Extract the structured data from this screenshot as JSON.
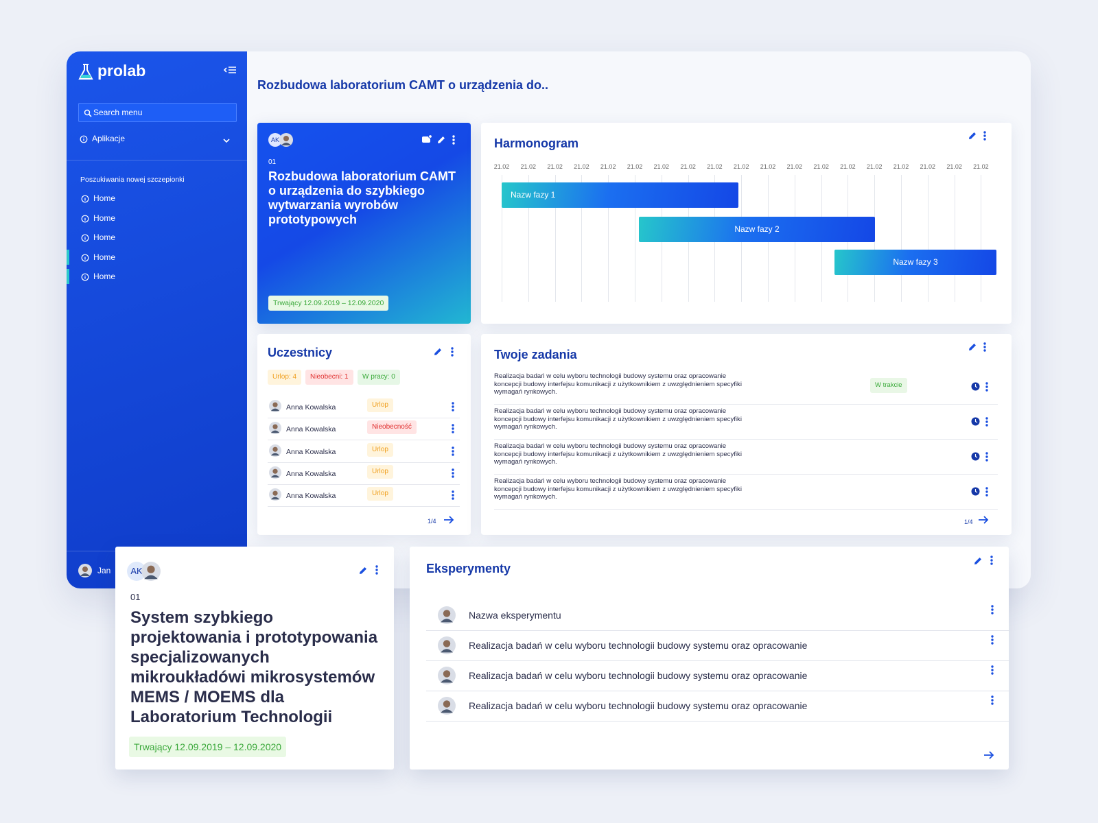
{
  "sidebar": {
    "logo": "prolab",
    "search": "Search menu",
    "apps": "Aplikacje",
    "section": "Poszukiwania nowej szczepionki",
    "items": [
      "Home",
      "Home",
      "Home",
      "Home",
      "Home"
    ],
    "user": "Jan"
  },
  "page_title": "Rozbudowa laboratorium CAMT o urządzenia do..",
  "project_card": {
    "avatar": "AK",
    "number": "01",
    "title": "Rozbudowa laboratorium CAMT o urządzenia do szybkiego wytwarzania wyrobów prototypowych",
    "status": "Trwający 12.09.2019 – 12.09.2020"
  },
  "schedule": {
    "title": "Harmonogram",
    "dates": [
      "21.02",
      "21.02",
      "21.02",
      "21.02",
      "21.02",
      "21.02",
      "21.02",
      "21.02",
      "21.02",
      "21.02",
      "21.02",
      "21.02",
      "21.02",
      "21.02",
      "21.02",
      "21.02",
      "21.02",
      "21.02",
      "21.02"
    ],
    "phases": [
      "Nazw fazy 1",
      "Nazw fazy 2",
      "Nazw fazy 3"
    ]
  },
  "participants": {
    "title": "Uczestnicy",
    "badges": [
      "Urlop: 4",
      "Nieobecni: 1",
      "W pracy: 0"
    ],
    "rows": [
      {
        "name": "Anna Kowalska",
        "status": "Urlop"
      },
      {
        "name": "Anna Kowalska",
        "status": "Nieobecność"
      },
      {
        "name": "Anna Kowalska",
        "status": "Urlop"
      },
      {
        "name": "Anna Kowalska",
        "status": "Urlop"
      },
      {
        "name": "Anna Kowalska",
        "status": "Urlop"
      }
    ],
    "pager": "1/4"
  },
  "tasks": {
    "title": "Twoje zadania",
    "rows": [
      {
        "text": "Realizacja badań w celu wyboru technologii budowy systemu oraz opracowanie koncepcji budowy interfejsu komunikacji z użytkownikiem z uwzględnieniem specyfiki wymagań rynkowych.",
        "status": "W trakcie"
      },
      {
        "text": "Realizacja badań w celu wyboru technologii budowy systemu oraz opracowanie koncepcji budowy interfejsu komunikacji z użytkownikiem z uwzględnieniem specyfiki wymagań rynkowych."
      },
      {
        "text": "Realizacja badań w celu wyboru technologii budowy systemu oraz opracowanie koncepcji budowy interfejsu komunikacji z użytkownikiem z uwzględnieniem specyfiki wymagań rynkowych."
      },
      {
        "text": "Realizacja badań w celu wyboru technologii budowy systemu oraz opracowanie koncepcji budowy interfejsu komunikacji z użytkownikiem z uwzględnieniem specyfiki wymagań rynkowych."
      }
    ],
    "pager": "1/4"
  },
  "zoom_card": {
    "avatar": "AK",
    "number": "01",
    "title": "System szybkiego projektowania i prototypowania specjalizowanych mikroukładówi mikrosystemów MEMS / MOEMS dla Laboratorium Technologii",
    "status": "Trwający 12.09.2019 – 12.09.2020"
  },
  "experiments": {
    "title": "Eksperymenty",
    "rows": [
      "Nazwa eksperymentu",
      "Realizacja badań w celu wyboru technologii budowy systemu oraz opracowanie",
      "Realizacja badań w celu wyboru technologii budowy systemu oraz opracowanie",
      "Realizacja badań w celu wyboru technologii budowy systemu oraz opracowanie"
    ]
  }
}
